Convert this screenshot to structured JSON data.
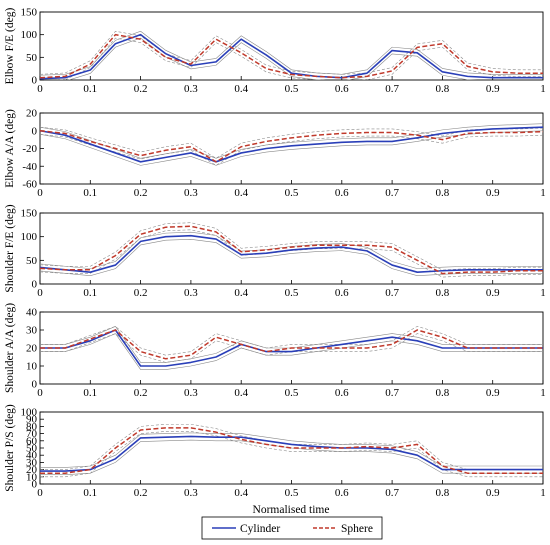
{
  "chart_data": [
    {
      "type": "line",
      "ylabel": "Elbow F/E (deg)",
      "ylim": [
        0,
        150
      ],
      "yticks": [
        "0",
        "50",
        "100",
        "150"
      ],
      "xlim": [
        0,
        1
      ],
      "xticks": [
        "0",
        "0.1",
        "0.2",
        "0.3",
        "0.4",
        "0.5",
        "0.6",
        "0.7",
        "0.8",
        "0.9",
        "1"
      ],
      "x": [
        0,
        0.05,
        0.1,
        0.15,
        0.2,
        0.25,
        0.3,
        0.35,
        0.4,
        0.45,
        0.5,
        0.55,
        0.6,
        0.65,
        0.7,
        0.75,
        0.8,
        0.85,
        0.9,
        0.95,
        1
      ],
      "series": [
        {
          "name": "Cylinder",
          "values": [
            3,
            5,
            22,
            80,
            100,
            58,
            32,
            40,
            90,
            55,
            15,
            8,
            5,
            15,
            65,
            60,
            18,
            8,
            5,
            5,
            5
          ]
        },
        {
          "name": "Sphere",
          "values": [
            5,
            8,
            35,
            100,
            90,
            50,
            35,
            90,
            60,
            25,
            12,
            8,
            5,
            8,
            20,
            72,
            80,
            30,
            18,
            15,
            15
          ]
        }
      ]
    },
    {
      "type": "line",
      "ylabel": "Elbow A/A (deg)",
      "ylim": [
        -60,
        20
      ],
      "yticks": [
        "-60",
        "-40",
        "-20",
        "0",
        "20"
      ],
      "xlim": [
        0,
        1
      ],
      "xticks": [
        "0",
        "0.1",
        "0.2",
        "0.3",
        "0.4",
        "0.5",
        "0.6",
        "0.7",
        "0.8",
        "0.9",
        "1"
      ],
      "x": [
        0,
        0.05,
        0.1,
        0.15,
        0.2,
        0.25,
        0.3,
        0.35,
        0.4,
        0.45,
        0.5,
        0.55,
        0.6,
        0.65,
        0.7,
        0.75,
        0.8,
        0.85,
        0.9,
        0.95,
        1
      ],
      "series": [
        {
          "name": "Cylinder",
          "values": [
            0,
            -5,
            -15,
            -25,
            -35,
            -30,
            -25,
            -35,
            -25,
            -20,
            -17,
            -15,
            -13,
            -12,
            -12,
            -8,
            -3,
            0,
            2,
            3,
            4
          ]
        },
        {
          "name": "Sphere",
          "values": [
            0,
            -3,
            -12,
            -20,
            -28,
            -22,
            -18,
            -35,
            -18,
            -12,
            -8,
            -5,
            -3,
            -2,
            -2,
            -5,
            -10,
            -3,
            -2,
            -2,
            -1
          ]
        }
      ]
    },
    {
      "type": "line",
      "ylabel": "Shoulder F/E (deg)",
      "ylim": [
        0,
        150
      ],
      "yticks": [
        "0",
        "50",
        "100",
        "150"
      ],
      "xlim": [
        0,
        1
      ],
      "xticks": [
        "0",
        "0.1",
        "0.2",
        "0.3",
        "0.4",
        "0.5",
        "0.6",
        "0.7",
        "0.8",
        "0.9",
        "1"
      ],
      "x": [
        0,
        0.05,
        0.1,
        0.15,
        0.2,
        0.25,
        0.3,
        0.35,
        0.4,
        0.45,
        0.5,
        0.55,
        0.6,
        0.65,
        0.7,
        0.75,
        0.8,
        0.85,
        0.9,
        0.95,
        1
      ],
      "series": [
        {
          "name": "Cylinder",
          "values": [
            35,
            30,
            25,
            40,
            90,
            100,
            102,
            95,
            62,
            65,
            72,
            76,
            78,
            70,
            40,
            25,
            28,
            30,
            30,
            30,
            30
          ]
        },
        {
          "name": "Sphere",
          "values": [
            33,
            30,
            30,
            60,
            105,
            120,
            122,
            110,
            68,
            72,
            78,
            82,
            82,
            82,
            78,
            50,
            22,
            25,
            25,
            28,
            28
          ]
        }
      ]
    },
    {
      "type": "line",
      "ylabel": "Shoulder A/A (deg)",
      "ylim": [
        0,
        40
      ],
      "yticks": [
        "0",
        "10",
        "20",
        "30",
        "40"
      ],
      "xlim": [
        0,
        1
      ],
      "xticks": [
        "0",
        "0.1",
        "0.2",
        "0.3",
        "0.4",
        "0.5",
        "0.6",
        "0.7",
        "0.8",
        "0.9",
        "1"
      ],
      "x": [
        0,
        0.05,
        0.1,
        0.15,
        0.2,
        0.25,
        0.3,
        0.35,
        0.4,
        0.45,
        0.5,
        0.55,
        0.6,
        0.65,
        0.7,
        0.75,
        0.8,
        0.85,
        0.9,
        0.95,
        1
      ],
      "series": [
        {
          "name": "Cylinder",
          "values": [
            20,
            20,
            24,
            30,
            10,
            10,
            12,
            15,
            22,
            18,
            18,
            20,
            22,
            24,
            26,
            24,
            20,
            20,
            20,
            20,
            20
          ]
        },
        {
          "name": "Sphere",
          "values": [
            20,
            20,
            25,
            30,
            18,
            14,
            16,
            26,
            22,
            18,
            20,
            20,
            20,
            20,
            22,
            30,
            26,
            20,
            20,
            20,
            20
          ]
        }
      ]
    },
    {
      "type": "line",
      "ylabel": "Shoulder P/S (deg)",
      "ylim": [
        0,
        100
      ],
      "yticks": [
        "0",
        "10",
        "20",
        "30",
        "40",
        "50",
        "60",
        "70",
        "80",
        "90",
        "100"
      ],
      "xlim": [
        0,
        1
      ],
      "xticks": [
        "0",
        "0.1",
        "0.2",
        "0.3",
        "0.4",
        "0.5",
        "0.6",
        "0.7",
        "0.8",
        "0.9",
        "1"
      ],
      "xlabel": "Normalised time",
      "x": [
        0,
        0.05,
        0.1,
        0.15,
        0.2,
        0.25,
        0.3,
        0.35,
        0.4,
        0.45,
        0.5,
        0.55,
        0.6,
        0.65,
        0.7,
        0.75,
        0.8,
        0.85,
        0.9,
        0.95,
        1
      ],
      "series": [
        {
          "name": "Cylinder",
          "values": [
            18,
            18,
            20,
            35,
            64,
            65,
            66,
            65,
            65,
            60,
            55,
            52,
            50,
            50,
            48,
            40,
            20,
            20,
            20,
            20,
            20
          ]
        },
        {
          "name": "Sphere",
          "values": [
            15,
            15,
            20,
            50,
            75,
            78,
            78,
            72,
            62,
            55,
            50,
            50,
            50,
            52,
            50,
            55,
            25,
            15,
            15,
            15,
            15
          ]
        }
      ]
    }
  ],
  "legend": {
    "position": "bottom",
    "entries": [
      {
        "label": "Cylinder",
        "color": "#2a3fb8",
        "style": "solid"
      },
      {
        "label": "Sphere",
        "color": "#c0392b",
        "style": "dashed"
      }
    ]
  },
  "colors": {
    "cylinder": "#2a3fb8",
    "sphere": "#c0392b",
    "band": "#8a8a8a"
  }
}
